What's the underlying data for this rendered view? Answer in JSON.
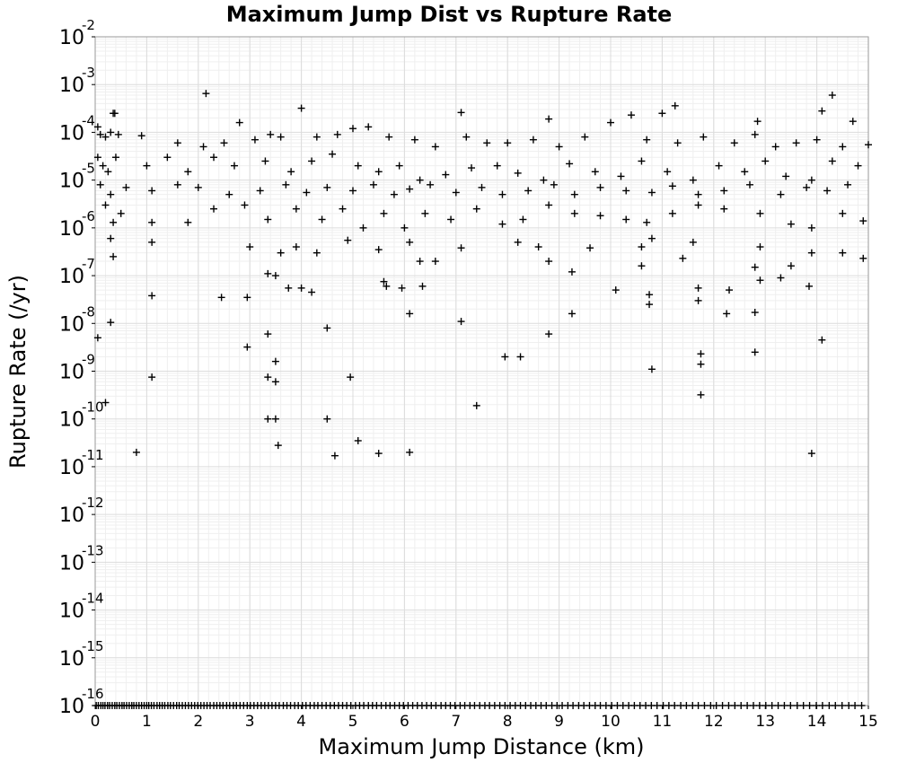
{
  "chart_data": {
    "type": "scatter",
    "title": "Maximum Jump Dist vs Rupture Rate",
    "xlabel": "Maximum Jump Distance (km)",
    "ylabel": "Rupture Rate (/yr)",
    "xlim": [
      0,
      15
    ],
    "ylim": [
      1e-16,
      0.01
    ],
    "yscale": "log",
    "grid": true,
    "marker": "+",
    "marker_color": "#000000",
    "x_ticks": [
      "0",
      "1",
      "2",
      "3",
      "4",
      "5",
      "6",
      "7",
      "8",
      "9",
      "10",
      "11",
      "12",
      "13",
      "14",
      "15"
    ],
    "y_ticks": [
      {
        "base": "10",
        "exp": "-16"
      },
      {
        "base": "10",
        "exp": "-15"
      },
      {
        "base": "10",
        "exp": "-14"
      },
      {
        "base": "10",
        "exp": "-13"
      },
      {
        "base": "10",
        "exp": "-12"
      },
      {
        "base": "10",
        "exp": "-11"
      },
      {
        "base": "10",
        "exp": "-10"
      },
      {
        "base": "10",
        "exp": "-9"
      },
      {
        "base": "10",
        "exp": "-8"
      },
      {
        "base": "10",
        "exp": "-7"
      },
      {
        "base": "10",
        "exp": "-6"
      },
      {
        "base": "10",
        "exp": "-5"
      },
      {
        "base": "10",
        "exp": "-4"
      },
      {
        "base": "10",
        "exp": "-3"
      },
      {
        "base": "10",
        "exp": "-2"
      }
    ],
    "points": [
      [
        2.15,
        0.00065
      ],
      [
        4.0,
        0.00032
      ],
      [
        11.25,
        0.00036
      ],
      [
        14.3,
        0.0006
      ],
      [
        7.1,
        0.00026
      ],
      [
        10.4,
        0.00023
      ],
      [
        11.0,
        0.00025
      ],
      [
        14.1,
        0.00028
      ],
      [
        14.7,
        0.00017
      ],
      [
        12.85,
        0.00017
      ],
      [
        2.8,
        0.00016
      ],
      [
        8.8,
        0.00019
      ],
      [
        10.0,
        0.00016
      ],
      [
        0.35,
        0.00025
      ],
      [
        0.38,
        0.00025
      ],
      [
        0.05,
        0.00013
      ],
      [
        0.1,
        9e-05
      ],
      [
        0.2,
        8e-05
      ],
      [
        0.3,
        0.0001
      ],
      [
        0.45,
        9e-05
      ],
      [
        0.9,
        8.5e-05
      ],
      [
        1.6,
        6e-05
      ],
      [
        2.1,
        5e-05
      ],
      [
        2.5,
        6e-05
      ],
      [
        3.1,
        7e-05
      ],
      [
        3.4,
        9e-05
      ],
      [
        3.6,
        8e-05
      ],
      [
        4.3,
        8e-05
      ],
      [
        4.7,
        9e-05
      ],
      [
        5.0,
        0.00012
      ],
      [
        5.3,
        0.00013
      ],
      [
        5.7,
        8e-05
      ],
      [
        6.2,
        7e-05
      ],
      [
        6.6,
        5e-05
      ],
      [
        7.2,
        8e-05
      ],
      [
        7.6,
        6e-05
      ],
      [
        8.0,
        6e-05
      ],
      [
        8.5,
        7e-05
      ],
      [
        9.0,
        5e-05
      ],
      [
        9.5,
        8e-05
      ],
      [
        10.7,
        7e-05
      ],
      [
        11.3,
        6e-05
      ],
      [
        11.8,
        8e-05
      ],
      [
        12.4,
        6e-05
      ],
      [
        12.8,
        9e-05
      ],
      [
        13.2,
        5e-05
      ],
      [
        13.6,
        6e-05
      ],
      [
        14.0,
        7e-05
      ],
      [
        14.5,
        5e-05
      ],
      [
        15.0,
        5.5e-05
      ],
      [
        0.05,
        3e-05
      ],
      [
        0.15,
        2e-05
      ],
      [
        0.25,
        1.5e-05
      ],
      [
        0.4,
        3e-05
      ],
      [
        1.0,
        2e-05
      ],
      [
        1.4,
        3e-05
      ],
      [
        1.8,
        1.5e-05
      ],
      [
        2.3,
        3e-05
      ],
      [
        2.7,
        2e-05
      ],
      [
        3.3,
        2.5e-05
      ],
      [
        3.8,
        1.5e-05
      ],
      [
        4.2,
        2.5e-05
      ],
      [
        4.6,
        3.5e-05
      ],
      [
        5.1,
        2e-05
      ],
      [
        5.5,
        1.5e-05
      ],
      [
        5.9,
        2e-05
      ],
      [
        6.3,
        1e-05
      ],
      [
        6.8,
        1.3e-05
      ],
      [
        7.3,
        1.8e-05
      ],
      [
        7.8,
        2e-05
      ],
      [
        8.2,
        1.4e-05
      ],
      [
        8.7,
        1e-05
      ],
      [
        9.2,
        2.2e-05
      ],
      [
        9.7,
        1.5e-05
      ],
      [
        10.2,
        1.2e-05
      ],
      [
        10.6,
        2.5e-05
      ],
      [
        11.1,
        1.5e-05
      ],
      [
        11.6,
        1e-05
      ],
      [
        12.1,
        2e-05
      ],
      [
        12.6,
        1.5e-05
      ],
      [
        13.0,
        2.5e-05
      ],
      [
        13.4,
        1.2e-05
      ],
      [
        13.9,
        1e-05
      ],
      [
        14.3,
        2.5e-05
      ],
      [
        14.8,
        2e-05
      ],
      [
        0.1,
        8e-06
      ],
      [
        0.3,
        5e-06
      ],
      [
        0.6,
        7e-06
      ],
      [
        1.1,
        6e-06
      ],
      [
        1.6,
        8e-06
      ],
      [
        2.0,
        7e-06
      ],
      [
        2.6,
        5e-06
      ],
      [
        3.2,
        6e-06
      ],
      [
        3.7,
        8e-06
      ],
      [
        4.1,
        5.5e-06
      ],
      [
        4.5,
        7e-06
      ],
      [
        5.0,
        6e-06
      ],
      [
        5.4,
        8e-06
      ],
      [
        5.8,
        5e-06
      ],
      [
        6.1,
        6.5e-06
      ],
      [
        6.5,
        8e-06
      ],
      [
        7.0,
        5.5e-06
      ],
      [
        7.5,
        7e-06
      ],
      [
        7.9,
        5e-06
      ],
      [
        8.4,
        6e-06
      ],
      [
        8.9,
        8e-06
      ],
      [
        9.3,
        5e-06
      ],
      [
        9.8,
        7e-06
      ],
      [
        10.3,
        6e-06
      ],
      [
        10.8,
        5.5e-06
      ],
      [
        11.2,
        7.5e-06
      ],
      [
        11.7,
        5e-06
      ],
      [
        12.2,
        6e-06
      ],
      [
        12.7,
        8e-06
      ],
      [
        13.3,
        5e-06
      ],
      [
        13.8,
        7e-06
      ],
      [
        14.2,
        6e-06
      ],
      [
        14.6,
        8e-06
      ],
      [
        0.2,
        3e-06
      ],
      [
        0.35,
        1.3e-06
      ],
      [
        0.5,
        2e-06
      ],
      [
        1.1,
        1.3e-06
      ],
      [
        1.8,
        1.3e-06
      ],
      [
        2.3,
        2.5e-06
      ],
      [
        2.9,
        3e-06
      ],
      [
        3.35,
        1.5e-06
      ],
      [
        3.9,
        2.5e-06
      ],
      [
        4.4,
        1.5e-06
      ],
      [
        4.8,
        2.5e-06
      ],
      [
        5.2,
        1e-06
      ],
      [
        5.6,
        2e-06
      ],
      [
        6.0,
        1e-06
      ],
      [
        6.4,
        2e-06
      ],
      [
        6.9,
        1.5e-06
      ],
      [
        7.4,
        2.5e-06
      ],
      [
        7.9,
        1.2e-06
      ],
      [
        8.3,
        1.5e-06
      ],
      [
        8.8,
        3e-06
      ],
      [
        9.3,
        2e-06
      ],
      [
        9.8,
        1.8e-06
      ],
      [
        10.3,
        1.5e-06
      ],
      [
        10.7,
        1.3e-06
      ],
      [
        11.2,
        2e-06
      ],
      [
        11.7,
        3e-06
      ],
      [
        12.2,
        2.5e-06
      ],
      [
        12.9,
        2e-06
      ],
      [
        13.5,
        1.2e-06
      ],
      [
        13.9,
        1e-06
      ],
      [
        14.5,
        2e-06
      ],
      [
        14.9,
        1.4e-06
      ],
      [
        0.3,
        6e-07
      ],
      [
        0.35,
        2.5e-07
      ],
      [
        1.1,
        5e-07
      ],
      [
        3.0,
        4e-07
      ],
      [
        3.6,
        3e-07
      ],
      [
        3.9,
        4e-07
      ],
      [
        4.3,
        3e-07
      ],
      [
        4.9,
        5.5e-07
      ],
      [
        5.5,
        3.5e-07
      ],
      [
        6.1,
        5e-07
      ],
      [
        6.3,
        2e-07
      ],
      [
        6.6,
        2e-07
      ],
      [
        7.1,
        3.8e-07
      ],
      [
        8.2,
        5e-07
      ],
      [
        8.6,
        4e-07
      ],
      [
        8.8,
        2e-07
      ],
      [
        9.6,
        3.8e-07
      ],
      [
        10.6,
        4e-07
      ],
      [
        10.8,
        6e-07
      ],
      [
        11.4,
        2.3e-07
      ],
      [
        11.6,
        5e-07
      ],
      [
        12.9,
        4e-07
      ],
      [
        13.5,
        1.6e-07
      ],
      [
        13.9,
        3e-07
      ],
      [
        14.5,
        3e-07
      ],
      [
        14.9,
        2.3e-07
      ],
      [
        12.8,
        1.5e-07
      ],
      [
        10.6,
        1.6e-07
      ],
      [
        9.25,
        1.2e-07
      ],
      [
        3.35,
        1.1e-07
      ],
      [
        3.5,
        1e-07
      ],
      [
        3.75,
        5.5e-08
      ],
      [
        4.0,
        5.5e-08
      ],
      [
        4.2,
        4.5e-08
      ],
      [
        5.6,
        7.5e-08
      ],
      [
        5.65,
        6e-08
      ],
      [
        5.95,
        5.5e-08
      ],
      [
        6.35,
        6e-08
      ],
      [
        10.1,
        5e-08
      ],
      [
        10.75,
        4e-08
      ],
      [
        10.75,
        2.5e-08
      ],
      [
        11.7,
        5.5e-08
      ],
      [
        11.7,
        3e-08
      ],
      [
        12.3,
        5e-08
      ],
      [
        12.9,
        8e-08
      ],
      [
        13.3,
        9e-08
      ],
      [
        13.85,
        6e-08
      ],
      [
        1.1,
        3.8e-08
      ],
      [
        2.45,
        3.5e-08
      ],
      [
        2.95,
        3.5e-08
      ],
      [
        0.3,
        1.05e-08
      ],
      [
        6.1,
        1.6e-08
      ],
      [
        7.1,
        1.1e-08
      ],
      [
        9.25,
        1.6e-08
      ],
      [
        12.25,
        1.6e-08
      ],
      [
        12.8,
        1.7e-08
      ],
      [
        0.05,
        5e-09
      ],
      [
        3.35,
        6e-09
      ],
      [
        4.5,
        8e-09
      ],
      [
        8.8,
        6e-09
      ],
      [
        14.1,
        4.5e-09
      ],
      [
        2.95,
        3.2e-09
      ],
      [
        12.8,
        2.5e-09
      ],
      [
        11.75,
        2.3e-09
      ],
      [
        7.95,
        2e-09
      ],
      [
        8.25,
        2e-09
      ],
      [
        3.5,
        1.6e-09
      ],
      [
        11.75,
        1.4e-09
      ],
      [
        10.8,
        1.1e-09
      ],
      [
        1.1,
        7.5e-10
      ],
      [
        3.35,
        7.5e-10
      ],
      [
        3.5,
        6e-10
      ],
      [
        4.95,
        7.5e-10
      ],
      [
        11.75,
        3.2e-10
      ],
      [
        0.2,
        2.2e-10
      ],
      [
        7.4,
        1.9e-10
      ],
      [
        3.35,
        1e-10
      ],
      [
        3.5,
        1e-10
      ],
      [
        4.5,
        1e-10
      ],
      [
        5.1,
        3.5e-11
      ],
      [
        3.55,
        2.8e-11
      ],
      [
        0.8,
        2e-11
      ],
      [
        4.65,
        1.7e-11
      ],
      [
        5.5,
        1.9e-11
      ],
      [
        6.1,
        2e-11
      ],
      [
        13.9,
        1.9e-11
      ]
    ],
    "floor_points_x": [
      0.02,
      0.06,
      0.11,
      0.15,
      0.19,
      0.24,
      0.28,
      0.33,
      0.38,
      0.42,
      0.47,
      0.52,
      0.56,
      0.61,
      0.66,
      0.71,
      0.75,
      0.8,
      0.85,
      0.9,
      0.95,
      1.0,
      1.04,
      1.09,
      1.14,
      1.2,
      1.25,
      1.3,
      1.35,
      1.41,
      1.46,
      1.52,
      1.58,
      1.63,
      1.69,
      1.75,
      1.81,
      1.87,
      1.93,
      1.99,
      2.05,
      2.11,
      2.17,
      2.23,
      2.3,
      2.36,
      2.42,
      2.48,
      2.55,
      2.61,
      2.68,
      2.74,
      2.81,
      2.88,
      2.95,
      3.01,
      3.08,
      3.15,
      3.22,
      3.29,
      3.36,
      3.43,
      3.5,
      3.57,
      3.65,
      3.72,
      3.79,
      3.87,
      3.94,
      4.02,
      4.09,
      4.17,
      4.25,
      4.32,
      4.4,
      4.48,
      4.56,
      4.64,
      4.72,
      4.8,
      4.88,
      4.96,
      5.05,
      5.13,
      5.21,
      5.3,
      5.38,
      5.46,
      5.55,
      5.64,
      5.72,
      5.81,
      5.9,
      5.98,
      6.07,
      6.16,
      6.25,
      6.34,
      6.43,
      6.52,
      6.61,
      6.71,
      6.8,
      6.89,
      6.98,
      7.08,
      7.17,
      7.27,
      7.36,
      7.46,
      7.56,
      7.65,
      7.75,
      7.85,
      7.95,
      8.05,
      8.15,
      8.25,
      8.35,
      8.45,
      8.55,
      8.65,
      8.75,
      8.86,
      8.96,
      9.06,
      9.17,
      9.27,
      9.38,
      9.48,
      9.59,
      9.7,
      9.8,
      9.91,
      10.02,
      10.13,
      10.24,
      10.35,
      10.46,
      10.57,
      10.68,
      10.79,
      10.9,
      11.02,
      11.13,
      11.24,
      11.36,
      11.47,
      11.59,
      11.7,
      11.82,
      11.94,
      12.05,
      12.17,
      12.29,
      12.41,
      12.53,
      12.65,
      12.77,
      12.89,
      13.01,
      13.13,
      13.25,
      13.37,
      13.49,
      13.62,
      13.74,
      13.86,
      13.99,
      14.11,
      14.24,
      14.36,
      14.49,
      14.62,
      14.74,
      14.87
    ]
  }
}
